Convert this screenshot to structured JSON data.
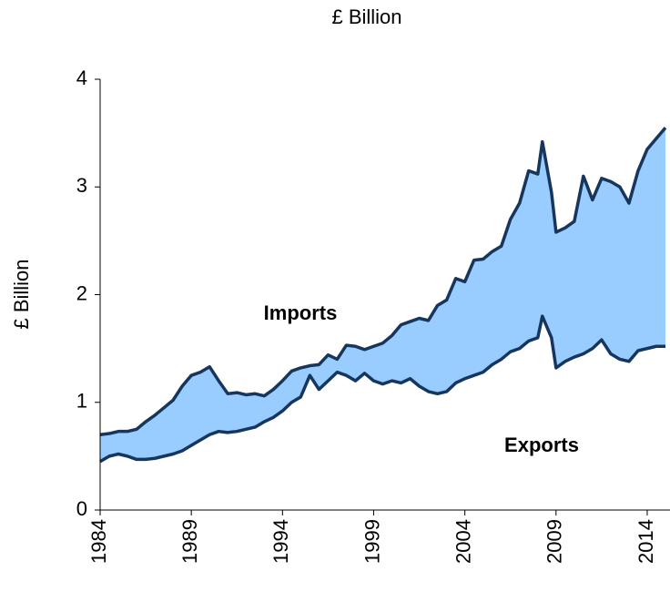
{
  "chart_data": {
    "type": "area-between",
    "subtitle": "£ Billion",
    "y_label": "£ Billion",
    "annotations": [
      "Imports",
      "Exports"
    ],
    "x": [
      1984,
      1984.5,
      1985,
      1985.5,
      1986,
      1986.5,
      1987,
      1987.5,
      1988,
      1988.5,
      1989,
      1989.5,
      1990,
      1990.5,
      1991,
      1991.5,
      1992,
      1992.5,
      1993,
      1993.5,
      1994,
      1994.5,
      1995,
      1995.5,
      1996,
      1996.5,
      1997,
      1997.5,
      1998,
      1998.5,
      1999,
      1999.5,
      2000,
      2000.5,
      2001,
      2001.5,
      2002,
      2002.5,
      2003,
      2003.5,
      2004,
      2004.5,
      2005,
      2005.5,
      2006,
      2006.5,
      2007,
      2007.5,
      2008,
      2008.25,
      2008.75,
      2009,
      2009.5,
      2010,
      2010.5,
      2011,
      2011.5,
      2012,
      2012.5,
      2013,
      2013.5,
      2014,
      2014.5,
      2015
    ],
    "series": [
      {
        "name": "Imports",
        "color": "#17365d",
        "values": [
          0.7,
          0.71,
          0.73,
          0.73,
          0.75,
          0.82,
          0.88,
          0.95,
          1.02,
          1.15,
          1.25,
          1.28,
          1.33,
          1.2,
          1.08,
          1.09,
          1.07,
          1.08,
          1.06,
          1.12,
          1.2,
          1.29,
          1.32,
          1.34,
          1.35,
          1.44,
          1.4,
          1.53,
          1.52,
          1.49,
          1.52,
          1.55,
          1.62,
          1.72,
          1.75,
          1.78,
          1.76,
          1.9,
          1.95,
          2.15,
          2.12,
          2.32,
          2.33,
          2.4,
          2.45,
          2.7,
          2.85,
          3.15,
          3.12,
          3.42,
          2.95,
          2.58,
          2.62,
          2.68,
          3.1,
          2.88,
          3.08,
          3.05,
          3.0,
          2.85,
          3.15,
          3.35,
          3.45,
          3.55
        ]
      },
      {
        "name": "Exports",
        "color": "#17365d",
        "values": [
          0.45,
          0.5,
          0.52,
          0.5,
          0.47,
          0.47,
          0.48,
          0.5,
          0.52,
          0.55,
          0.6,
          0.65,
          0.7,
          0.73,
          0.72,
          0.73,
          0.75,
          0.77,
          0.82,
          0.86,
          0.92,
          1.0,
          1.05,
          1.25,
          1.12,
          1.2,
          1.28,
          1.25,
          1.2,
          1.27,
          1.2,
          1.17,
          1.2,
          1.18,
          1.22,
          1.15,
          1.1,
          1.08,
          1.1,
          1.18,
          1.22,
          1.25,
          1.28,
          1.35,
          1.4,
          1.47,
          1.5,
          1.57,
          1.6,
          1.8,
          1.6,
          1.32,
          1.38,
          1.42,
          1.45,
          1.5,
          1.58,
          1.45,
          1.4,
          1.38,
          1.48,
          1.5,
          1.52,
          1.52
        ]
      }
    ],
    "fill_color": "#99ccff",
    "xlim": [
      1984,
      2015
    ],
    "xticks": [
      1984,
      1989,
      1994,
      1999,
      2004,
      2009,
      2014
    ],
    "ylim": [
      0,
      4
    ],
    "yticks": [
      0,
      1,
      2,
      3,
      4
    ],
    "grid": false
  }
}
